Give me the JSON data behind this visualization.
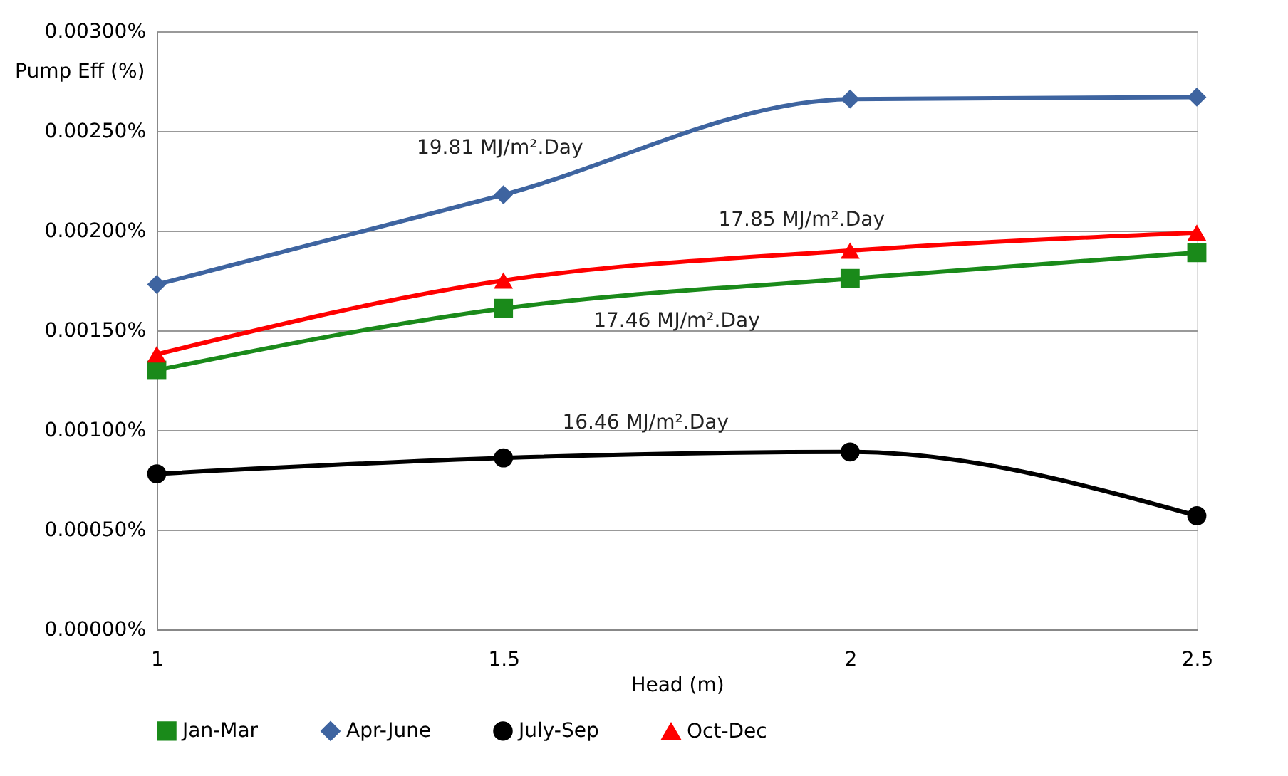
{
  "chart_data": {
    "type": "line",
    "xlabel": "Head (m)",
    "ylabel": "Pump Eff (%)",
    "x": [
      1,
      1.5,
      2,
      2.5
    ],
    "series": [
      {
        "name": "Jan-Mar",
        "color": "#1a8a1a",
        "marker": "square",
        "values": [
          0.0013,
          0.00161,
          0.00176,
          0.00189
        ]
      },
      {
        "name": "Apr-June",
        "color": "#3e64a0",
        "marker": "diamond",
        "values": [
          0.00173,
          0.00218,
          0.00266,
          0.00267
        ]
      },
      {
        "name": "July-Sep",
        "color": "#000000",
        "marker": "circle",
        "values": [
          0.00078,
          0.00086,
          0.00089,
          0.00057
        ]
      },
      {
        "name": "Oct-Dec",
        "color": "#ff0000",
        "marker": "triangle",
        "values": [
          0.00138,
          0.00175,
          0.0019,
          0.00199
        ]
      }
    ],
    "annotations": [
      "19.81 MJ/m².Day",
      "17.85 MJ/m².Day",
      "17.46 MJ/m².Day",
      "16.46 MJ/m².Day"
    ],
    "xlim": [
      1,
      2.5
    ],
    "xticks": [
      1,
      1.5,
      2,
      2.5
    ],
    "ylim": [
      0,
      0.003
    ],
    "yticks": [
      {
        "value": 0,
        "label": "0.00000%"
      },
      {
        "value": 0.0005,
        "label": "0.00050%"
      },
      {
        "value": 0.001,
        "label": "0.00100%"
      },
      {
        "value": 0.0015,
        "label": "0.00150%"
      },
      {
        "value": 0.002,
        "label": "0.00200%"
      },
      {
        "value": 0.0025,
        "label": "0.00250%"
      },
      {
        "value": 0.003,
        "label": "0.00300%"
      }
    ],
    "grid": "y",
    "legend": "bottom",
    "line_style": "solid"
  }
}
